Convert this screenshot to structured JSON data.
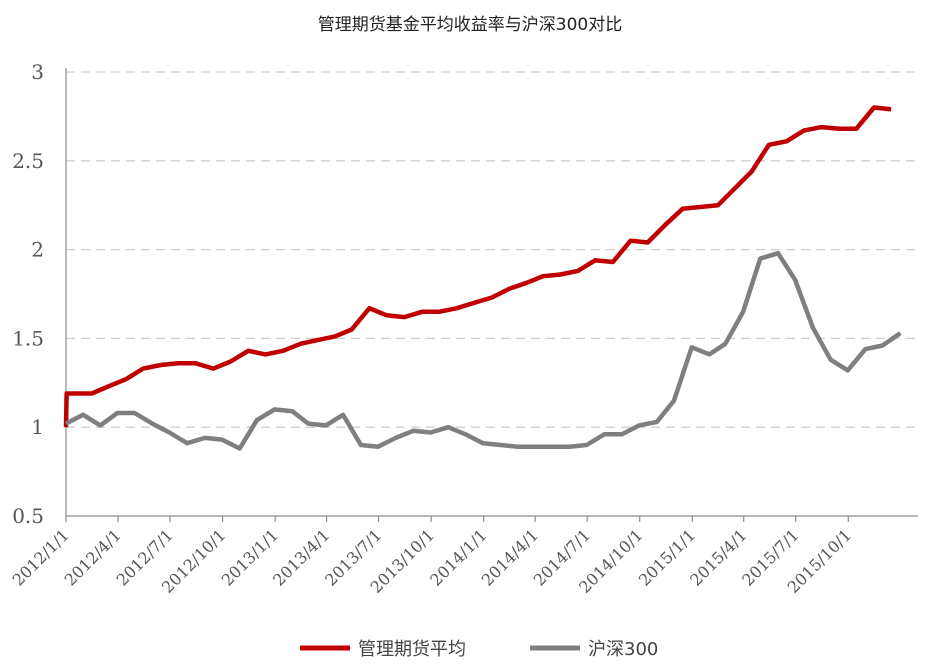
{
  "chart_data": {
    "type": "line",
    "title": "管理期货基金平均收益率与沪深300对比",
    "xlabel": "",
    "ylabel": "",
    "ylim": [
      0.5,
      3
    ],
    "yticks": [
      "0.5",
      "1",
      "1.5",
      "2",
      "2.5",
      "3"
    ],
    "xtick_labels": [
      "2012/1/1",
      "2012/4/1",
      "2012/7/1",
      "2012/10/1",
      "2013/1/1",
      "2013/4/1",
      "2013/7/1",
      "2013/10/1",
      "2014/1/1",
      "2014/4/1",
      "2014/7/1",
      "2014/10/1",
      "2015/1/1",
      "2015/4/1",
      "2015/7/1",
      "2015/10/1"
    ],
    "x_range": [
      "2012-01-01",
      "2016-01-31"
    ],
    "grid": "horizontal dashed",
    "legend_position": "bottom",
    "series": [
      {
        "name": "管理期货平均",
        "color": "#c00000",
        "points": [
          [
            "2012-01-01",
            1.0
          ],
          [
            "2012-01-02",
            1.19
          ],
          [
            "2012-01-31",
            1.19
          ],
          [
            "2012-02-15",
            1.19
          ],
          [
            "2012-03-15",
            1.23
          ],
          [
            "2012-04-15",
            1.27
          ],
          [
            "2012-05-15",
            1.33
          ],
          [
            "2012-06-15",
            1.35
          ],
          [
            "2012-07-15",
            1.36
          ],
          [
            "2012-08-15",
            1.36
          ],
          [
            "2012-09-15",
            1.33
          ],
          [
            "2012-10-15",
            1.37
          ],
          [
            "2012-11-15",
            1.43
          ],
          [
            "2012-12-15",
            1.41
          ],
          [
            "2013-01-15",
            1.43
          ],
          [
            "2013-02-15",
            1.47
          ],
          [
            "2013-03-15",
            1.49
          ],
          [
            "2013-04-15",
            1.51
          ],
          [
            "2013-05-15",
            1.55
          ],
          [
            "2013-06-15",
            1.67
          ],
          [
            "2013-07-15",
            1.63
          ],
          [
            "2013-08-15",
            1.62
          ],
          [
            "2013-09-15",
            1.65
          ],
          [
            "2013-10-15",
            1.65
          ],
          [
            "2013-11-15",
            1.67
          ],
          [
            "2013-12-15",
            1.7
          ],
          [
            "2014-01-15",
            1.73
          ],
          [
            "2014-02-15",
            1.78
          ],
          [
            "2014-03-15",
            1.81
          ],
          [
            "2014-04-15",
            1.85
          ],
          [
            "2014-05-15",
            1.86
          ],
          [
            "2014-06-15",
            1.88
          ],
          [
            "2014-07-15",
            1.94
          ],
          [
            "2014-08-15",
            1.93
          ],
          [
            "2014-09-15",
            2.05
          ],
          [
            "2014-10-15",
            2.04
          ],
          [
            "2014-11-15",
            2.14
          ],
          [
            "2014-12-15",
            2.23
          ],
          [
            "2015-01-15",
            2.24
          ],
          [
            "2015-02-15",
            2.25
          ],
          [
            "2015-03-15",
            2.34
          ],
          [
            "2015-04-15",
            2.44
          ],
          [
            "2015-05-15",
            2.59
          ],
          [
            "2015-06-15",
            2.61
          ],
          [
            "2015-07-15",
            2.67
          ],
          [
            "2015-08-15",
            2.69
          ],
          [
            "2015-09-15",
            2.68
          ],
          [
            "2015-10-15",
            2.68
          ],
          [
            "2015-11-15",
            2.8
          ],
          [
            "2015-12-15",
            2.79
          ]
        ]
      },
      {
        "name": "沪深300",
        "color": "#7f7f7f",
        "points": [
          [
            "2012-01-01",
            1.02
          ],
          [
            "2012-01-31",
            1.07
          ],
          [
            "2012-03-01",
            1.01
          ],
          [
            "2012-03-31",
            1.08
          ],
          [
            "2012-04-30",
            1.08
          ],
          [
            "2012-05-31",
            1.02
          ],
          [
            "2012-06-30",
            0.97
          ],
          [
            "2012-07-31",
            0.91
          ],
          [
            "2012-08-31",
            0.94
          ],
          [
            "2012-09-30",
            0.93
          ],
          [
            "2012-10-31",
            0.88
          ],
          [
            "2012-11-30",
            1.04
          ],
          [
            "2012-12-31",
            1.1
          ],
          [
            "2013-01-31",
            1.09
          ],
          [
            "2013-02-28",
            1.02
          ],
          [
            "2013-03-31",
            1.01
          ],
          [
            "2013-04-30",
            1.07
          ],
          [
            "2013-05-31",
            0.9
          ],
          [
            "2013-06-30",
            0.89
          ],
          [
            "2013-07-31",
            0.94
          ],
          [
            "2013-08-31",
            0.98
          ],
          [
            "2013-09-30",
            0.97
          ],
          [
            "2013-10-31",
            1.0
          ],
          [
            "2013-11-30",
            0.96
          ],
          [
            "2013-12-31",
            0.91
          ],
          [
            "2014-01-31",
            0.9
          ],
          [
            "2014-02-28",
            0.89
          ],
          [
            "2014-03-31",
            0.89
          ],
          [
            "2014-04-30",
            0.89
          ],
          [
            "2014-05-31",
            0.89
          ],
          [
            "2014-06-30",
            0.9
          ],
          [
            "2014-07-31",
            0.96
          ],
          [
            "2014-08-31",
            0.96
          ],
          [
            "2014-09-30",
            1.01
          ],
          [
            "2014-10-31",
            1.03
          ],
          [
            "2014-11-30",
            1.15
          ],
          [
            "2014-12-31",
            1.45
          ],
          [
            "2015-01-31",
            1.41
          ],
          [
            "2015-02-28",
            1.47
          ],
          [
            "2015-03-31",
            1.65
          ],
          [
            "2015-04-30",
            1.95
          ],
          [
            "2015-05-31",
            1.98
          ],
          [
            "2015-06-30",
            1.83
          ],
          [
            "2015-07-31",
            1.56
          ],
          [
            "2015-08-31",
            1.38
          ],
          [
            "2015-09-30",
            1.32
          ],
          [
            "2015-10-31",
            1.44
          ],
          [
            "2015-11-30",
            1.46
          ],
          [
            "2015-12-31",
            1.53
          ]
        ]
      }
    ]
  }
}
